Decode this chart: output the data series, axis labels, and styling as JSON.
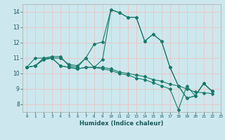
{
  "xlabel": "Humidex (Indice chaleur)",
  "ylabel": "",
  "background_color": "#cce8ee",
  "grid_color": "#e8c8c8",
  "line_color": "#1a7a6a",
  "xlim": [
    -0.5,
    23
  ],
  "ylim": [
    7.5,
    14.5
  ],
  "xticks": [
    0,
    1,
    2,
    3,
    4,
    5,
    6,
    7,
    8,
    9,
    10,
    11,
    12,
    13,
    14,
    15,
    16,
    17,
    18,
    19,
    20,
    21,
    22,
    23
  ],
  "yticks": [
    8,
    9,
    10,
    11,
    12,
    13,
    14
  ],
  "series": [
    [
      10.4,
      11.0,
      11.0,
      11.1,
      11.1,
      10.5,
      10.4,
      11.0,
      10.4,
      10.9,
      14.15,
      13.95,
      13.65,
      13.65,
      12.1,
      12.55,
      12.1,
      10.4,
      9.2,
      8.4,
      8.55,
      9.35,
      8.85
    ],
    [
      10.4,
      10.5,
      11.0,
      11.0,
      11.0,
      10.6,
      10.5,
      11.0,
      11.9,
      12.05,
      14.15,
      13.95,
      13.65,
      13.65,
      12.1,
      12.55,
      12.1,
      10.4,
      9.2,
      8.4,
      8.55,
      9.35,
      8.85
    ],
    [
      10.4,
      10.5,
      10.9,
      11.0,
      10.5,
      10.4,
      10.3,
      10.4,
      10.4,
      10.4,
      10.3,
      10.1,
      10.0,
      9.9,
      9.8,
      9.6,
      9.5,
      9.3,
      9.2,
      9.0,
      8.8,
      8.75,
      8.7
    ],
    [
      10.4,
      10.5,
      10.9,
      11.0,
      10.5,
      10.4,
      10.3,
      10.4,
      10.4,
      10.3,
      10.2,
      10.0,
      9.9,
      9.7,
      9.6,
      9.4,
      9.2,
      9.0,
      7.65,
      9.2,
      8.55,
      9.35,
      8.85
    ]
  ]
}
